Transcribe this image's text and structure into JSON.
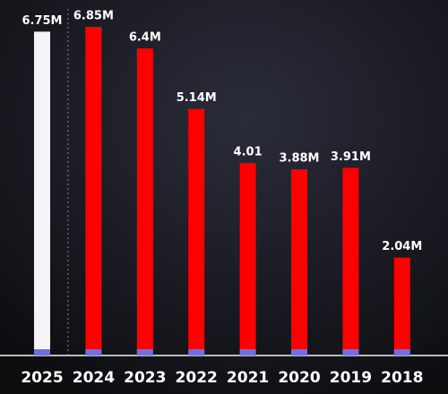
{
  "chart_data": {
    "type": "bar",
    "categories": [
      "2025",
      "2024",
      "2023",
      "2022",
      "2021",
      "2020",
      "2019",
      "2018"
    ],
    "values": [
      6.75,
      6.85,
      6.4,
      5.14,
      4.01,
      3.88,
      3.91,
      2.04
    ],
    "value_labels": [
      "6.75M",
      "6.85M",
      "6.4M",
      "5.14M",
      "4.01",
      "3.88M",
      "3.91M",
      "2.04M"
    ],
    "colors": [
      "#f4f4f6",
      "#ff0000",
      "#ff0000",
      "#ff0000",
      "#ff0000",
      "#ff0000",
      "#ff0000",
      "#ff0000"
    ]
  }
}
